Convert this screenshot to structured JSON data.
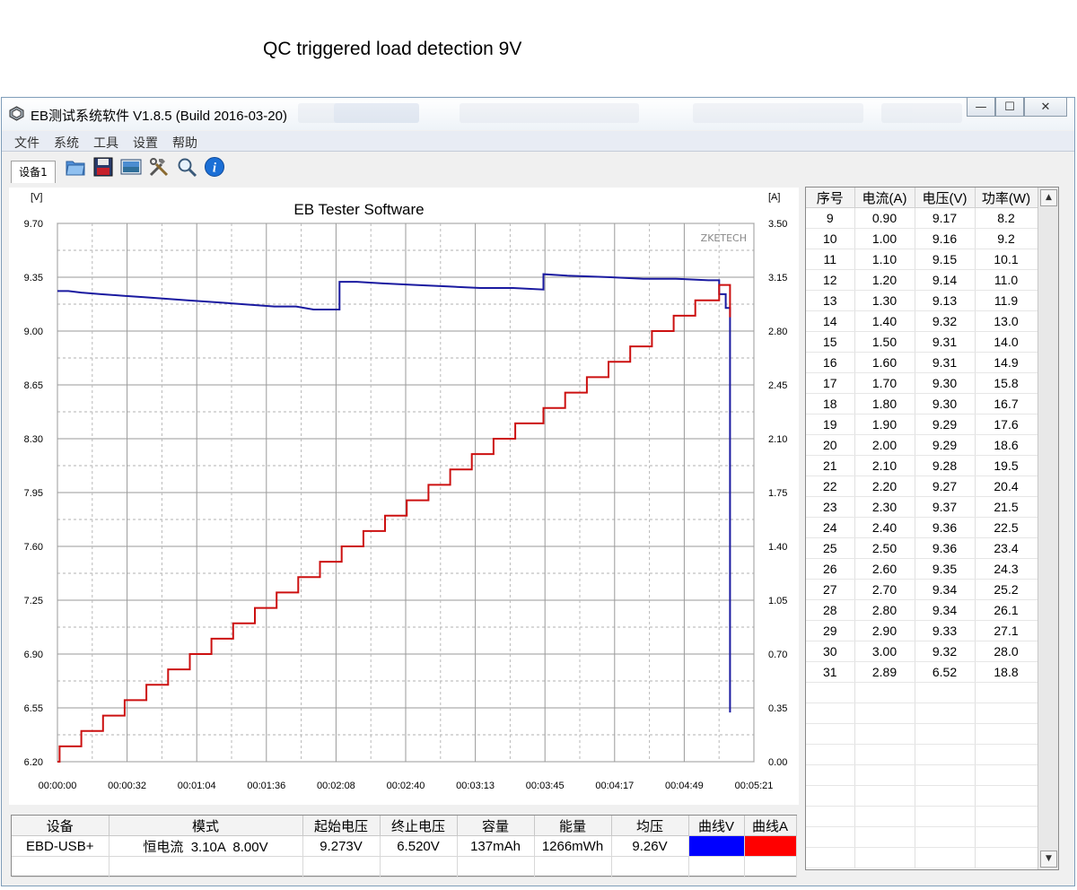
{
  "caption": "QC triggered load detection 9V",
  "window": {
    "title": "EB测试系统软件 V1.8.5 (Build 2016-03-20)",
    "controls": {
      "minimize": "—",
      "maximize": "☐",
      "close": "✕"
    }
  },
  "menu": [
    "文件",
    "系统",
    "工具",
    "设置",
    "帮助"
  ],
  "toolbar": {
    "device_tab": "设备1",
    "icons": [
      "open-folder-icon",
      "save-icon",
      "picture-icon",
      "tools-icon",
      "search-icon",
      "info-icon"
    ]
  },
  "chart_data": {
    "type": "line",
    "title": "EB Tester Software",
    "watermark": "ZKETECH",
    "y_left_unit": "[V]",
    "y_right_unit": "[A]",
    "y_left_ticks": [
      "9.70",
      "9.35",
      "9.00",
      "8.65",
      "8.30",
      "7.95",
      "7.60",
      "7.25",
      "6.90",
      "6.55",
      "6.20"
    ],
    "y_right_ticks": [
      "3.50",
      "3.15",
      "2.80",
      "2.45",
      "2.10",
      "1.75",
      "1.40",
      "1.05",
      "0.70",
      "0.35",
      "0.00"
    ],
    "x_ticks": [
      "00:00:00",
      "00:00:32",
      "00:01:04",
      "00:01:36",
      "00:02:08",
      "00:02:40",
      "00:03:13",
      "00:03:45",
      "00:04:17",
      "00:04:49",
      "00:05:21"
    ],
    "y_left_range": [
      6.2,
      9.7
    ],
    "y_right_range": [
      0.0,
      3.5
    ],
    "x_range_seconds": [
      0,
      321
    ],
    "grid": true,
    "series": [
      {
        "color": "#1a1aa0",
        "axis": "left",
        "points": [
          [
            0,
            9.26
          ],
          [
            5,
            9.26
          ],
          [
            11,
            9.25
          ],
          [
            20,
            9.24
          ],
          [
            30,
            9.23
          ],
          [
            40,
            9.22
          ],
          [
            50,
            9.21
          ],
          [
            60,
            9.2
          ],
          [
            70,
            9.19
          ],
          [
            80,
            9.18
          ],
          [
            90,
            9.17
          ],
          [
            100,
            9.16
          ],
          [
            110,
            9.16
          ],
          [
            118,
            9.14
          ],
          [
            125,
            9.14
          ],
          [
            130,
            9.14
          ],
          [
            130,
            9.32
          ],
          [
            138,
            9.32
          ],
          [
            150,
            9.31
          ],
          [
            165,
            9.3
          ],
          [
            180,
            9.29
          ],
          [
            195,
            9.28
          ],
          [
            210,
            9.28
          ],
          [
            224,
            9.27
          ],
          [
            224,
            9.37
          ],
          [
            235,
            9.36
          ],
          [
            255,
            9.35
          ],
          [
            270,
            9.34
          ],
          [
            285,
            9.34
          ],
          [
            300,
            9.33
          ],
          [
            305,
            9.33
          ],
          [
            305,
            9.24
          ],
          [
            308,
            9.24
          ],
          [
            308,
            9.15
          ],
          [
            310,
            9.15
          ],
          [
            310,
            6.52
          ]
        ]
      },
      {
        "color": "#cc1010",
        "axis": "right",
        "points": [
          [
            0,
            0.0
          ],
          [
            1,
            0.0
          ],
          [
            1,
            0.1
          ],
          [
            11,
            0.1
          ],
          [
            11,
            0.2
          ],
          [
            21,
            0.2
          ],
          [
            21,
            0.3
          ],
          [
            31,
            0.3
          ],
          [
            31,
            0.4
          ],
          [
            41,
            0.4
          ],
          [
            41,
            0.5
          ],
          [
            43,
            0.5
          ],
          [
            43,
            0.5
          ],
          [
            51,
            0.5
          ],
          [
            51,
            0.6
          ],
          [
            61,
            0.6
          ],
          [
            61,
            0.7
          ],
          [
            71,
            0.7
          ],
          [
            71,
            0.8
          ],
          [
            81,
            0.8
          ],
          [
            81,
            0.9
          ],
          [
            91,
            0.9
          ],
          [
            91,
            1.0
          ],
          [
            101,
            1.0
          ],
          [
            101,
            1.1
          ],
          [
            111,
            1.1
          ],
          [
            111,
            1.2
          ],
          [
            121,
            1.2
          ],
          [
            121,
            1.3
          ],
          [
            131,
            1.3
          ],
          [
            131,
            1.4
          ],
          [
            141,
            1.4
          ],
          [
            141,
            1.5
          ],
          [
            151,
            1.5
          ],
          [
            151,
            1.6
          ],
          [
            161,
            1.6
          ],
          [
            161,
            1.7
          ],
          [
            171,
            1.7
          ],
          [
            171,
            1.8
          ],
          [
            181,
            1.8
          ],
          [
            181,
            1.9
          ],
          [
            191,
            1.9
          ],
          [
            191,
            2.0
          ],
          [
            201,
            2.0
          ],
          [
            201,
            2.1
          ],
          [
            211,
            2.1
          ],
          [
            211,
            2.2
          ],
          [
            224,
            2.2
          ],
          [
            224,
            2.3
          ],
          [
            234,
            2.3
          ],
          [
            234,
            2.4
          ],
          [
            244,
            2.4
          ],
          [
            244,
            2.5
          ],
          [
            254,
            2.5
          ],
          [
            254,
            2.6
          ],
          [
            264,
            2.6
          ],
          [
            264,
            2.7
          ],
          [
            274,
            2.7
          ],
          [
            274,
            2.8
          ],
          [
            284,
            2.8
          ],
          [
            284,
            2.9
          ],
          [
            294,
            2.9
          ],
          [
            294,
            3.0
          ],
          [
            305,
            3.0
          ],
          [
            305,
            3.1
          ],
          [
            310,
            3.1
          ],
          [
            310,
            2.89
          ]
        ]
      }
    ]
  },
  "summary": {
    "headers": [
      "设备",
      "模式",
      "起始电压",
      "终止电压",
      "容量",
      "能量",
      "均压",
      "曲线V",
      "曲线A"
    ],
    "row": [
      "EBD-USB+",
      "恒电流  3.10A  8.00V",
      "9.273V",
      "6.520V",
      "137mAh",
      "1266mWh",
      "9.26V"
    ],
    "curve_v_color": "#0000ff",
    "curve_a_color": "#ff0000"
  },
  "grid": {
    "headers": [
      "序号",
      "电流(A)",
      "电压(V)",
      "功率(W)"
    ],
    "rows": [
      [
        "9",
        "0.90",
        "9.17",
        "8.2"
      ],
      [
        "10",
        "1.00",
        "9.16",
        "9.2"
      ],
      [
        "11",
        "1.10",
        "9.15",
        "10.1"
      ],
      [
        "12",
        "1.20",
        "9.14",
        "11.0"
      ],
      [
        "13",
        "1.30",
        "9.13",
        "11.9"
      ],
      [
        "14",
        "1.40",
        "9.32",
        "13.0"
      ],
      [
        "15",
        "1.50",
        "9.31",
        "14.0"
      ],
      [
        "16",
        "1.60",
        "9.31",
        "14.9"
      ],
      [
        "17",
        "1.70",
        "9.30",
        "15.8"
      ],
      [
        "18",
        "1.80",
        "9.30",
        "16.7"
      ],
      [
        "19",
        "1.90",
        "9.29",
        "17.6"
      ],
      [
        "20",
        "2.00",
        "9.29",
        "18.6"
      ],
      [
        "21",
        "2.10",
        "9.28",
        "19.5"
      ],
      [
        "22",
        "2.20",
        "9.27",
        "20.4"
      ],
      [
        "23",
        "2.30",
        "9.37",
        "21.5"
      ],
      [
        "24",
        "2.40",
        "9.36",
        "22.5"
      ],
      [
        "25",
        "2.50",
        "9.36",
        "23.4"
      ],
      [
        "26",
        "2.60",
        "9.35",
        "24.3"
      ],
      [
        "27",
        "2.70",
        "9.34",
        "25.2"
      ],
      [
        "28",
        "2.80",
        "9.34",
        "26.1"
      ],
      [
        "29",
        "2.90",
        "9.33",
        "27.1"
      ],
      [
        "30",
        "3.00",
        "9.32",
        "28.0"
      ],
      [
        "31",
        "2.89",
        "6.52",
        "18.8"
      ]
    ],
    "empty_rows": 9,
    "scroll_up": "▲",
    "scroll_down": "▼"
  }
}
